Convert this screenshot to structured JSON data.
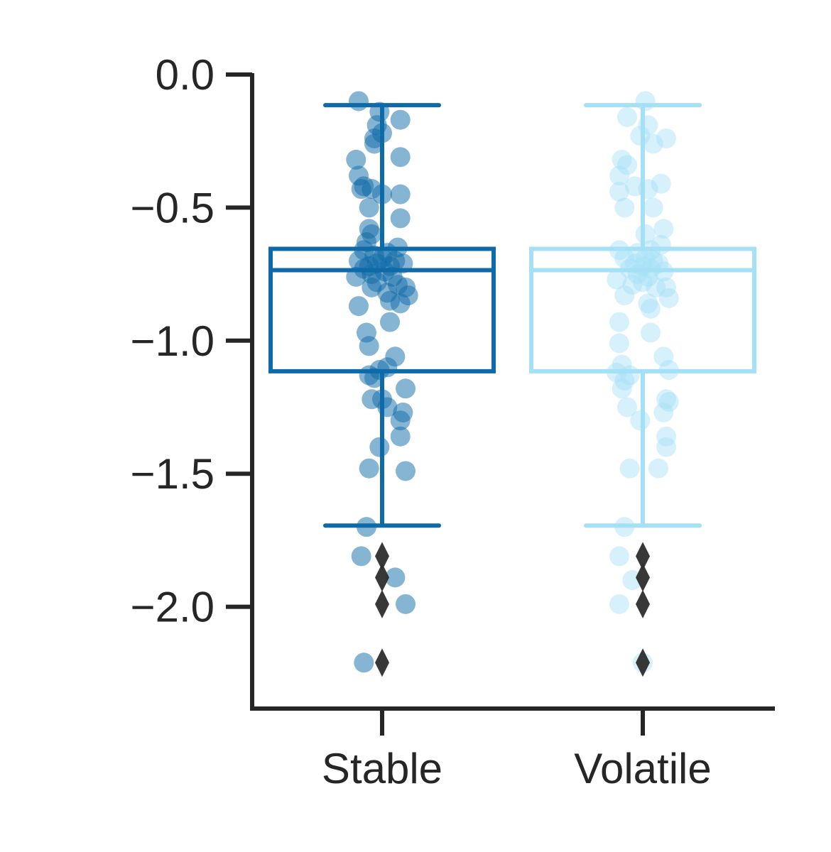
{
  "chart_data": {
    "type": "box",
    "categories": [
      "Stable",
      "Volatile"
    ],
    "ylim": [
      -2.39,
      0.0
    ],
    "yticks": [
      0.0,
      -0.5,
      -1.0,
      -1.5,
      -2.0
    ],
    "ytick_labels": [
      "0.0",
      "−0.5",
      "−1.0",
      "−1.5",
      "−2.0"
    ],
    "grid": false,
    "legend": "none",
    "colors": {
      "Stable": "#0e6aa8",
      "Volatile": "#a4e0f6",
      "outlier": "#2d2d2d"
    },
    "boxes": [
      {
        "category": "Stable",
        "whisker_high": -0.115,
        "q3": -0.655,
        "median": -0.735,
        "q1": -1.115,
        "whisker_low": -1.695,
        "outliers": [
          -1.81,
          -1.89,
          -1.99,
          -2.21
        ]
      },
      {
        "category": "Volatile",
        "whisker_high": -0.115,
        "q3": -0.655,
        "median": -0.735,
        "q1": -1.115,
        "whisker_low": -1.695,
        "outliers": [
          -1.81,
          -1.89,
          -1.99,
          -2.21
        ]
      }
    ],
    "points": {
      "Stable": [
        {
          "j": -0.09,
          "y": -0.1
        },
        {
          "j": -0.01,
          "y": -0.14
        },
        {
          "j": 0.07,
          "y": -0.17
        },
        {
          "j": -0.02,
          "y": -0.19
        },
        {
          "j": 0.0,
          "y": -0.22
        },
        {
          "j": -0.03,
          "y": -0.24
        },
        {
          "j": -0.03,
          "y": -0.26
        },
        {
          "j": 0.07,
          "y": -0.31
        },
        {
          "j": -0.1,
          "y": -0.32
        },
        {
          "j": -0.09,
          "y": -0.38
        },
        {
          "j": -0.07,
          "y": -0.42
        },
        {
          "j": -0.08,
          "y": -0.43
        },
        {
          "j": -0.04,
          "y": -0.43
        },
        {
          "j": 0.0,
          "y": -0.45
        },
        {
          "j": 0.07,
          "y": -0.45
        },
        {
          "j": -0.05,
          "y": -0.5
        },
        {
          "j": 0.07,
          "y": -0.54
        },
        {
          "j": -0.05,
          "y": -0.58
        },
        {
          "j": -0.04,
          "y": -0.6
        },
        {
          "j": -0.06,
          "y": -0.63
        },
        {
          "j": 0.06,
          "y": -0.65
        },
        {
          "j": -0.07,
          "y": -0.66
        },
        {
          "j": 0.02,
          "y": -0.67
        },
        {
          "j": -0.03,
          "y": -0.68
        },
        {
          "j": 0.0,
          "y": -0.69
        },
        {
          "j": -0.09,
          "y": -0.7
        },
        {
          "j": 0.05,
          "y": -0.7
        },
        {
          "j": -0.02,
          "y": -0.71
        },
        {
          "j": 0.08,
          "y": -0.71
        },
        {
          "j": -0.05,
          "y": -0.72
        },
        {
          "j": 0.03,
          "y": -0.72
        },
        {
          "j": -0.07,
          "y": -0.73
        },
        {
          "j": 0.01,
          "y": -0.74
        },
        {
          "j": -0.04,
          "y": -0.75
        },
        {
          "j": -0.1,
          "y": -0.76
        },
        {
          "j": 0.04,
          "y": -0.76
        },
        {
          "j": -0.02,
          "y": -0.78
        },
        {
          "j": 0.06,
          "y": -0.79
        },
        {
          "j": -0.04,
          "y": -0.8
        },
        {
          "j": 0.09,
          "y": -0.8
        },
        {
          "j": 0.02,
          "y": -0.82
        },
        {
          "j": 0.1,
          "y": -0.83
        },
        {
          "j": 0.03,
          "y": -0.85
        },
        {
          "j": 0.07,
          "y": -0.86
        },
        {
          "j": -0.09,
          "y": -0.87
        },
        {
          "j": 0.03,
          "y": -0.93
        },
        {
          "j": -0.06,
          "y": -0.97
        },
        {
          "j": -0.05,
          "y": -1.02
        },
        {
          "j": 0.05,
          "y": -1.06
        },
        {
          "j": 0.02,
          "y": -1.1
        },
        {
          "j": -0.01,
          "y": -1.11
        },
        {
          "j": -0.05,
          "y": -1.13
        },
        {
          "j": -0.03,
          "y": -1.14
        },
        {
          "j": 0.09,
          "y": -1.18
        },
        {
          "j": -0.04,
          "y": -1.22
        },
        {
          "j": 0.0,
          "y": -1.22
        },
        {
          "j": 0.02,
          "y": -1.25
        },
        {
          "j": 0.08,
          "y": -1.27
        },
        {
          "j": 0.07,
          "y": -1.3
        },
        {
          "j": 0.07,
          "y": -1.36
        },
        {
          "j": -0.01,
          "y": -1.4
        },
        {
          "j": -0.05,
          "y": -1.48
        },
        {
          "j": 0.09,
          "y": -1.49
        },
        {
          "j": -0.06,
          "y": -1.7
        },
        {
          "j": -0.08,
          "y": -1.81
        },
        {
          "j": 0.05,
          "y": -1.89
        },
        {
          "j": 0.09,
          "y": -1.99
        },
        {
          "j": -0.07,
          "y": -2.21
        }
      ],
      "Volatile": [
        {
          "j": 0.01,
          "y": -0.1
        },
        {
          "j": -0.06,
          "y": -0.16
        },
        {
          "j": 0.02,
          "y": -0.19
        },
        {
          "j": -0.01,
          "y": -0.23
        },
        {
          "j": 0.09,
          "y": -0.24
        },
        {
          "j": 0.04,
          "y": -0.26
        },
        {
          "j": -0.08,
          "y": -0.32
        },
        {
          "j": -0.06,
          "y": -0.34
        },
        {
          "j": -0.09,
          "y": -0.38
        },
        {
          "j": 0.07,
          "y": -0.41
        },
        {
          "j": -0.03,
          "y": -0.42
        },
        {
          "j": 0.02,
          "y": -0.43
        },
        {
          "j": -0.09,
          "y": -0.44
        },
        {
          "j": -0.07,
          "y": -0.5
        },
        {
          "j": 0.04,
          "y": -0.5
        },
        {
          "j": 0.08,
          "y": -0.58
        },
        {
          "j": 0.01,
          "y": -0.6
        },
        {
          "j": 0.07,
          "y": -0.64
        },
        {
          "j": -0.09,
          "y": -0.66
        },
        {
          "j": 0.03,
          "y": -0.66
        },
        {
          "j": -0.02,
          "y": -0.67
        },
        {
          "j": -0.07,
          "y": -0.69
        },
        {
          "j": 0.01,
          "y": -0.69
        },
        {
          "j": 0.04,
          "y": -0.7
        },
        {
          "j": -0.03,
          "y": -0.71
        },
        {
          "j": 0.06,
          "y": -0.71
        },
        {
          "j": 0.0,
          "y": -0.72
        },
        {
          "j": -0.05,
          "y": -0.73
        },
        {
          "j": 0.03,
          "y": -0.73
        },
        {
          "j": 0.08,
          "y": -0.74
        },
        {
          "j": -0.02,
          "y": -0.75
        },
        {
          "j": 0.02,
          "y": -0.76
        },
        {
          "j": -0.1,
          "y": -0.77
        },
        {
          "j": 0.0,
          "y": -0.78
        },
        {
          "j": -0.04,
          "y": -0.79
        },
        {
          "j": 0.05,
          "y": -0.8
        },
        {
          "j": 0.09,
          "y": -0.8
        },
        {
          "j": -0.07,
          "y": -0.83
        },
        {
          "j": 0.1,
          "y": -0.84
        },
        {
          "j": 0.02,
          "y": -0.86
        },
        {
          "j": 0.03,
          "y": -0.88
        },
        {
          "j": -0.09,
          "y": -0.93
        },
        {
          "j": 0.03,
          "y": -0.97
        },
        {
          "j": -0.09,
          "y": -1.01
        },
        {
          "j": 0.08,
          "y": -1.06
        },
        {
          "j": -0.08,
          "y": -1.09
        },
        {
          "j": 0.1,
          "y": -1.11
        },
        {
          "j": -0.1,
          "y": -1.12
        },
        {
          "j": -0.05,
          "y": -1.13
        },
        {
          "j": -0.07,
          "y": -1.15
        },
        {
          "j": -0.08,
          "y": -1.18
        },
        {
          "j": 0.09,
          "y": -1.22
        },
        {
          "j": 0.1,
          "y": -1.23
        },
        {
          "j": -0.06,
          "y": -1.25
        },
        {
          "j": 0.08,
          "y": -1.27
        },
        {
          "j": -0.01,
          "y": -1.3
        },
        {
          "j": 0.09,
          "y": -1.36
        },
        {
          "j": 0.09,
          "y": -1.4
        },
        {
          "j": -0.05,
          "y": -1.48
        },
        {
          "j": 0.06,
          "y": -1.48
        },
        {
          "j": -0.07,
          "y": -1.7
        },
        {
          "j": -0.09,
          "y": -1.81
        },
        {
          "j": -0.04,
          "y": -1.9
        },
        {
          "j": -0.09,
          "y": -1.99
        },
        {
          "j": 0.0,
          "y": -2.21
        }
      ]
    }
  }
}
